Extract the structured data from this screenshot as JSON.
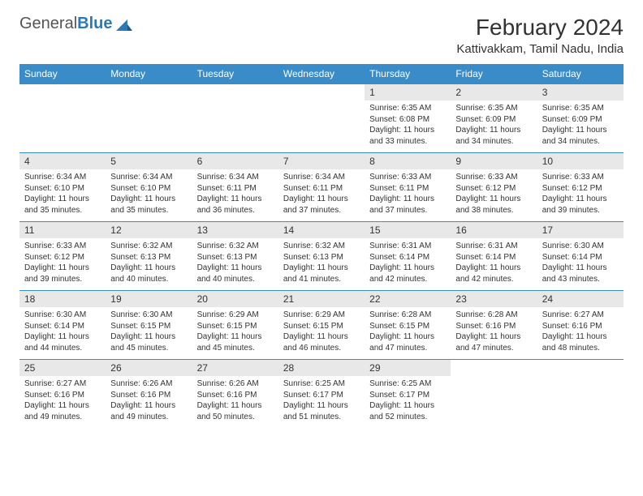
{
  "brand": {
    "part1": "General",
    "part2": "Blue"
  },
  "title": "February 2024",
  "location": "Kattivakkam, Tamil Nadu, India",
  "colors": {
    "header_bg": "#3a8cc9",
    "header_text": "#ffffff",
    "daynum_bg": "#e8e8e8",
    "border": "#3a8cc9",
    "body_text": "#333333",
    "brand_blue": "#2a7ab8"
  },
  "weekdays": [
    "Sunday",
    "Monday",
    "Tuesday",
    "Wednesday",
    "Thursday",
    "Friday",
    "Saturday"
  ],
  "first_weekday_index": 4,
  "days": [
    {
      "n": 1,
      "sunrise": "6:35 AM",
      "sunset": "6:08 PM",
      "daylight": "11 hours and 33 minutes."
    },
    {
      "n": 2,
      "sunrise": "6:35 AM",
      "sunset": "6:09 PM",
      "daylight": "11 hours and 34 minutes."
    },
    {
      "n": 3,
      "sunrise": "6:35 AM",
      "sunset": "6:09 PM",
      "daylight": "11 hours and 34 minutes."
    },
    {
      "n": 4,
      "sunrise": "6:34 AM",
      "sunset": "6:10 PM",
      "daylight": "11 hours and 35 minutes."
    },
    {
      "n": 5,
      "sunrise": "6:34 AM",
      "sunset": "6:10 PM",
      "daylight": "11 hours and 35 minutes."
    },
    {
      "n": 6,
      "sunrise": "6:34 AM",
      "sunset": "6:11 PM",
      "daylight": "11 hours and 36 minutes."
    },
    {
      "n": 7,
      "sunrise": "6:34 AM",
      "sunset": "6:11 PM",
      "daylight": "11 hours and 37 minutes."
    },
    {
      "n": 8,
      "sunrise": "6:33 AM",
      "sunset": "6:11 PM",
      "daylight": "11 hours and 37 minutes."
    },
    {
      "n": 9,
      "sunrise": "6:33 AM",
      "sunset": "6:12 PM",
      "daylight": "11 hours and 38 minutes."
    },
    {
      "n": 10,
      "sunrise": "6:33 AM",
      "sunset": "6:12 PM",
      "daylight": "11 hours and 39 minutes."
    },
    {
      "n": 11,
      "sunrise": "6:33 AM",
      "sunset": "6:12 PM",
      "daylight": "11 hours and 39 minutes."
    },
    {
      "n": 12,
      "sunrise": "6:32 AM",
      "sunset": "6:13 PM",
      "daylight": "11 hours and 40 minutes."
    },
    {
      "n": 13,
      "sunrise": "6:32 AM",
      "sunset": "6:13 PM",
      "daylight": "11 hours and 40 minutes."
    },
    {
      "n": 14,
      "sunrise": "6:32 AM",
      "sunset": "6:13 PM",
      "daylight": "11 hours and 41 minutes."
    },
    {
      "n": 15,
      "sunrise": "6:31 AM",
      "sunset": "6:14 PM",
      "daylight": "11 hours and 42 minutes."
    },
    {
      "n": 16,
      "sunrise": "6:31 AM",
      "sunset": "6:14 PM",
      "daylight": "11 hours and 42 minutes."
    },
    {
      "n": 17,
      "sunrise": "6:30 AM",
      "sunset": "6:14 PM",
      "daylight": "11 hours and 43 minutes."
    },
    {
      "n": 18,
      "sunrise": "6:30 AM",
      "sunset": "6:14 PM",
      "daylight": "11 hours and 44 minutes."
    },
    {
      "n": 19,
      "sunrise": "6:30 AM",
      "sunset": "6:15 PM",
      "daylight": "11 hours and 45 minutes."
    },
    {
      "n": 20,
      "sunrise": "6:29 AM",
      "sunset": "6:15 PM",
      "daylight": "11 hours and 45 minutes."
    },
    {
      "n": 21,
      "sunrise": "6:29 AM",
      "sunset": "6:15 PM",
      "daylight": "11 hours and 46 minutes."
    },
    {
      "n": 22,
      "sunrise": "6:28 AM",
      "sunset": "6:15 PM",
      "daylight": "11 hours and 47 minutes."
    },
    {
      "n": 23,
      "sunrise": "6:28 AM",
      "sunset": "6:16 PM",
      "daylight": "11 hours and 47 minutes."
    },
    {
      "n": 24,
      "sunrise": "6:27 AM",
      "sunset": "6:16 PM",
      "daylight": "11 hours and 48 minutes."
    },
    {
      "n": 25,
      "sunrise": "6:27 AM",
      "sunset": "6:16 PM",
      "daylight": "11 hours and 49 minutes."
    },
    {
      "n": 26,
      "sunrise": "6:26 AM",
      "sunset": "6:16 PM",
      "daylight": "11 hours and 49 minutes."
    },
    {
      "n": 27,
      "sunrise": "6:26 AM",
      "sunset": "6:16 PM",
      "daylight": "11 hours and 50 minutes."
    },
    {
      "n": 28,
      "sunrise": "6:25 AM",
      "sunset": "6:17 PM",
      "daylight": "11 hours and 51 minutes."
    },
    {
      "n": 29,
      "sunrise": "6:25 AM",
      "sunset": "6:17 PM",
      "daylight": "11 hours and 52 minutes."
    }
  ],
  "labels": {
    "sunrise": "Sunrise:",
    "sunset": "Sunset:",
    "daylight": "Daylight:"
  }
}
